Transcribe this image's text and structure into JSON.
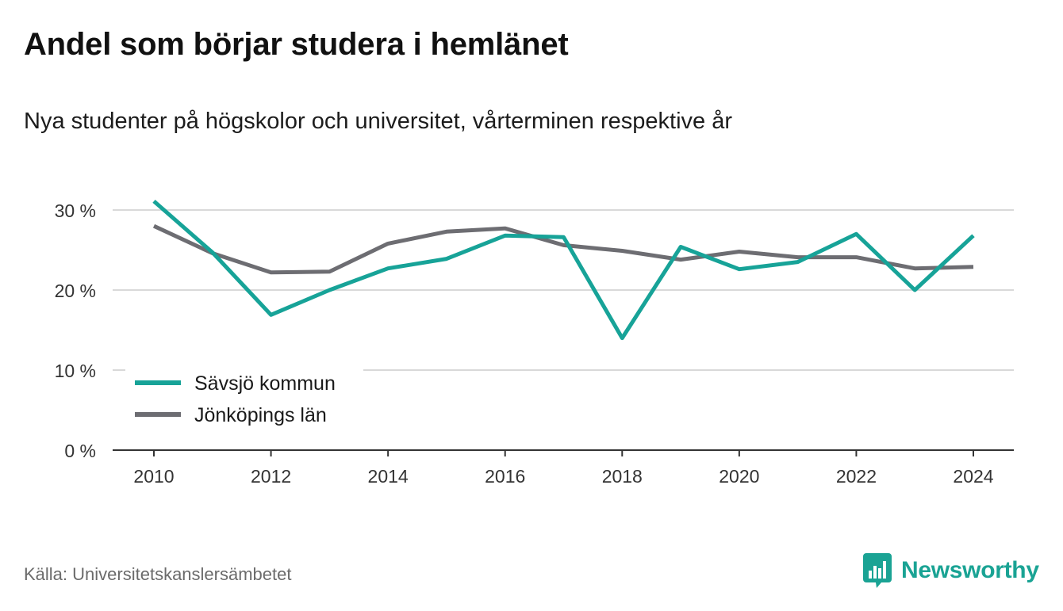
{
  "header": {
    "title": "Andel som börjar studera i hemlänet",
    "subtitle": "Nya studenter på högskolor och universitet, vårterminen respektive år"
  },
  "footer": {
    "source": "Källa: Universitetskanslersämbetet",
    "brand": "Newsworthy",
    "brand_icon": "newsworthy-logo-icon"
  },
  "colors": {
    "series_1": "#17a398",
    "series_2": "#6d6d72",
    "grid": "#d9d9d9",
    "axis": "#333333",
    "brand": "#1aa394"
  },
  "chart_data": {
    "type": "line",
    "title": "Andel som börjar studera i hemlänet",
    "subtitle": "Nya studenter på högskolor och universitet, vårterminen respektive år",
    "xlabel": "",
    "ylabel": "",
    "x": [
      2010,
      2011,
      2012,
      2013,
      2014,
      2015,
      2016,
      2017,
      2018,
      2019,
      2020,
      2021,
      2022,
      2023,
      2024
    ],
    "xlim": [
      2010,
      2024
    ],
    "x_ticks": [
      2010,
      2012,
      2014,
      2016,
      2018,
      2020,
      2022,
      2024
    ],
    "x_tick_labels": [
      "2010",
      "2012",
      "2014",
      "2016",
      "2018",
      "2020",
      "2022",
      "2024"
    ],
    "ylim": [
      0,
      30
    ],
    "y_ticks": [
      0,
      10,
      20,
      30
    ],
    "y_tick_labels": [
      "0 %",
      "10 %",
      "20 %",
      "30 %"
    ],
    "grid": true,
    "legend_position": "bottom-left",
    "series": [
      {
        "name": "Sävsjö kommun",
        "color": "#17a398",
        "values": [
          31.1,
          24.7,
          16.9,
          20.0,
          22.7,
          23.9,
          26.8,
          26.6,
          14.0,
          25.4,
          22.6,
          23.5,
          27.0,
          20.0,
          26.8
        ]
      },
      {
        "name": "Jönköpings län",
        "color": "#6d6d72",
        "values": [
          28.0,
          24.6,
          22.2,
          22.3,
          25.8,
          27.3,
          27.7,
          25.6,
          24.9,
          23.8,
          24.8,
          24.1,
          24.1,
          22.7,
          22.9
        ]
      }
    ]
  }
}
